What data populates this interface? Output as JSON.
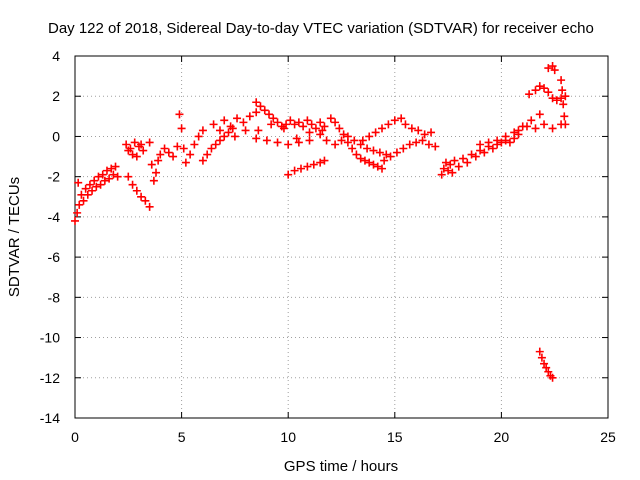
{
  "chart_data": {
    "type": "scatter",
    "title": "Day 122 of 2018, Sidereal Day-to-day VTEC variation (SDTVAR) for receiver echo",
    "xlabel": "GPS time / hours",
    "ylabel": "SDTVAR / TECUs",
    "xlim": [
      0,
      25
    ],
    "ylim": [
      -14,
      4
    ],
    "x_ticks": [
      0,
      5,
      10,
      15,
      20,
      25
    ],
    "y_ticks": [
      4,
      2,
      0,
      -2,
      -4,
      -6,
      -8,
      -10,
      -12,
      -14
    ],
    "grid": true,
    "marker": "+",
    "color": "#ff0000",
    "series": [
      {
        "name": "SDTVAR",
        "points": [
          [
            0.0,
            -4.2
          ],
          [
            0.1,
            -3.8
          ],
          [
            0.15,
            -2.3
          ],
          [
            0.2,
            -3.4
          ],
          [
            0.3,
            -2.9
          ],
          [
            0.4,
            -3.2
          ],
          [
            0.5,
            -2.6
          ],
          [
            0.6,
            -2.9
          ],
          [
            0.7,
            -2.4
          ],
          [
            0.8,
            -2.7
          ],
          [
            0.9,
            -2.2
          ],
          [
            1.0,
            -2.5
          ],
          [
            1.1,
            -2.0
          ],
          [
            1.2,
            -2.4
          ],
          [
            1.3,
            -1.9
          ],
          [
            1.4,
            -2.2
          ],
          [
            1.5,
            -1.7
          ],
          [
            1.6,
            -2.1
          ],
          [
            1.7,
            -1.6
          ],
          [
            1.8,
            -1.9
          ],
          [
            1.9,
            -1.5
          ],
          [
            2.0,
            -2.0
          ],
          [
            2.4,
            -0.4
          ],
          [
            2.5,
            -0.7
          ],
          [
            2.6,
            -0.6
          ],
          [
            2.7,
            -0.9
          ],
          [
            2.8,
            -0.3
          ],
          [
            2.9,
            -1.0
          ],
          [
            3.0,
            -0.5
          ],
          [
            3.1,
            -0.4
          ],
          [
            3.2,
            -0.7
          ],
          [
            2.5,
            -2.0
          ],
          [
            2.7,
            -2.4
          ],
          [
            2.9,
            -2.7
          ],
          [
            3.1,
            -3.0
          ],
          [
            3.3,
            -3.2
          ],
          [
            3.5,
            -3.5
          ],
          [
            3.5,
            -0.3
          ],
          [
            3.6,
            -1.4
          ],
          [
            3.7,
            -2.2
          ],
          [
            3.8,
            -1.8
          ],
          [
            3.9,
            -1.2
          ],
          [
            4.0,
            -0.9
          ],
          [
            4.2,
            -0.6
          ],
          [
            4.4,
            -0.8
          ],
          [
            4.6,
            -1.0
          ],
          [
            4.8,
            -0.5
          ],
          [
            4.9,
            1.1
          ],
          [
            5.0,
            0.4
          ],
          [
            5.1,
            -0.6
          ],
          [
            5.2,
            -1.3
          ],
          [
            5.4,
            -0.9
          ],
          [
            5.6,
            -0.4
          ],
          [
            5.8,
            0.0
          ],
          [
            6.0,
            0.3
          ],
          [
            6.0,
            -1.2
          ],
          [
            6.2,
            -0.9
          ],
          [
            6.4,
            -0.6
          ],
          [
            6.6,
            -0.4
          ],
          [
            6.8,
            -0.2
          ],
          [
            7.0,
            0.0
          ],
          [
            7.2,
            0.2
          ],
          [
            7.4,
            0.4
          ],
          [
            6.5,
            0.6
          ],
          [
            6.8,
            0.3
          ],
          [
            7.0,
            0.8
          ],
          [
            7.3,
            0.5
          ],
          [
            7.6,
            0.9
          ],
          [
            7.9,
            0.7
          ],
          [
            8.2,
            1.0
          ],
          [
            8.5,
            1.2
          ],
          [
            8.5,
            1.7
          ],
          [
            8.7,
            1.5
          ],
          [
            8.9,
            1.3
          ],
          [
            9.1,
            1.1
          ],
          [
            9.3,
            0.9
          ],
          [
            9.5,
            0.7
          ],
          [
            9.7,
            0.5
          ],
          [
            9.9,
            0.6
          ],
          [
            10.1,
            0.8
          ],
          [
            10.3,
            0.6
          ],
          [
            10.5,
            0.7
          ],
          [
            10.7,
            0.5
          ],
          [
            10.9,
            0.8
          ],
          [
            11.1,
            0.6
          ],
          [
            11.3,
            0.4
          ],
          [
            11.5,
            0.7
          ],
          [
            11.7,
            0.5
          ],
          [
            7.5,
            0.0
          ],
          [
            8.0,
            0.3
          ],
          [
            8.5,
            -0.1
          ],
          [
            9.0,
            -0.2
          ],
          [
            9.5,
            -0.3
          ],
          [
            10.0,
            -0.4
          ],
          [
            10.5,
            -0.3
          ],
          [
            11.0,
            -0.2
          ],
          [
            11.5,
            0.1
          ],
          [
            11.8,
            -0.2
          ],
          [
            8.6,
            0.3
          ],
          [
            9.2,
            0.6
          ],
          [
            9.8,
            0.4
          ],
          [
            10.4,
            -0.1
          ],
          [
            11.0,
            0.2
          ],
          [
            11.6,
            0.3
          ],
          [
            10.0,
            -1.9
          ],
          [
            10.3,
            -1.7
          ],
          [
            10.6,
            -1.6
          ],
          [
            10.9,
            -1.5
          ],
          [
            11.2,
            -1.4
          ],
          [
            11.5,
            -1.3
          ],
          [
            11.7,
            -1.2
          ],
          [
            12.0,
            0.9
          ],
          [
            12.2,
            0.7
          ],
          [
            12.4,
            0.4
          ],
          [
            12.6,
            0.1
          ],
          [
            12.8,
            -0.3
          ],
          [
            13.0,
            -0.6
          ],
          [
            13.2,
            -0.9
          ],
          [
            13.4,
            -1.1
          ],
          [
            13.6,
            -1.2
          ],
          [
            13.8,
            -1.3
          ],
          [
            14.0,
            -1.4
          ],
          [
            14.2,
            -1.5
          ],
          [
            14.4,
            -1.6
          ],
          [
            12.2,
            -0.4
          ],
          [
            12.5,
            -0.2
          ],
          [
            12.8,
            0.0
          ],
          [
            13.1,
            -0.2
          ],
          [
            13.4,
            -0.4
          ],
          [
            13.7,
            -0.6
          ],
          [
            14.0,
            -0.7
          ],
          [
            14.3,
            -0.8
          ],
          [
            14.6,
            -0.9
          ],
          [
            13.5,
            -0.2
          ],
          [
            13.8,
            0.0
          ],
          [
            14.1,
            0.2
          ],
          [
            14.4,
            0.4
          ],
          [
            14.7,
            0.6
          ],
          [
            15.0,
            0.8
          ],
          [
            15.3,
            0.9
          ],
          [
            14.5,
            -1.2
          ],
          [
            14.8,
            -1.0
          ],
          [
            15.1,
            -0.8
          ],
          [
            15.4,
            -0.6
          ],
          [
            15.7,
            -0.4
          ],
          [
            16.0,
            -0.3
          ],
          [
            16.3,
            -0.2
          ],
          [
            16.6,
            -0.4
          ],
          [
            16.9,
            -0.5
          ],
          [
            15.5,
            0.6
          ],
          [
            15.8,
            0.4
          ],
          [
            16.1,
            0.3
          ],
          [
            16.4,
            0.1
          ],
          [
            16.7,
            0.2
          ],
          [
            17.2,
            -1.9
          ],
          [
            17.3,
            -1.6
          ],
          [
            17.4,
            -1.3
          ],
          [
            17.5,
            -1.7
          ],
          [
            17.6,
            -1.4
          ],
          [
            17.7,
            -1.8
          ],
          [
            17.8,
            -1.2
          ],
          [
            18.0,
            -1.5
          ],
          [
            18.2,
            -1.1
          ],
          [
            18.4,
            -1.3
          ],
          [
            18.6,
            -0.9
          ],
          [
            18.8,
            -1.0
          ],
          [
            19.0,
            -0.7
          ],
          [
            19.2,
            -0.8
          ],
          [
            19.4,
            -0.5
          ],
          [
            19.6,
            -0.6
          ],
          [
            19.8,
            -0.4
          ],
          [
            20.0,
            -0.3
          ],
          [
            20.2,
            -0.2
          ],
          [
            20.4,
            -0.3
          ],
          [
            20.6,
            -0.1
          ],
          [
            20.8,
            0.1
          ],
          [
            19.0,
            -0.4
          ],
          [
            19.4,
            -0.3
          ],
          [
            19.8,
            -0.2
          ],
          [
            20.2,
            0.0
          ],
          [
            20.6,
            0.2
          ],
          [
            21.0,
            0.5
          ],
          [
            21.4,
            0.8
          ],
          [
            21.8,
            1.1
          ],
          [
            20.8,
            0.3
          ],
          [
            21.2,
            0.5
          ],
          [
            21.6,
            0.4
          ],
          [
            22.0,
            0.6
          ],
          [
            22.4,
            0.4
          ],
          [
            22.8,
            0.6
          ],
          [
            21.3,
            2.1
          ],
          [
            21.6,
            2.3
          ],
          [
            21.8,
            2.5
          ],
          [
            22.0,
            2.4
          ],
          [
            22.2,
            2.2
          ],
          [
            22.4,
            1.9
          ],
          [
            22.6,
            1.8
          ],
          [
            22.8,
            1.9
          ],
          [
            23.0,
            2.0
          ],
          [
            22.2,
            3.4
          ],
          [
            22.4,
            3.5
          ],
          [
            22.5,
            3.3
          ],
          [
            22.8,
            2.8
          ],
          [
            22.85,
            2.3
          ],
          [
            22.9,
            1.6
          ],
          [
            22.95,
            1.0
          ],
          [
            23.0,
            0.6
          ],
          [
            21.8,
            -10.7
          ],
          [
            21.9,
            -11.0
          ],
          [
            22.0,
            -11.3
          ],
          [
            22.1,
            -11.5
          ],
          [
            22.2,
            -11.7
          ],
          [
            22.3,
            -11.9
          ],
          [
            22.4,
            -12.0
          ]
        ]
      }
    ]
  }
}
